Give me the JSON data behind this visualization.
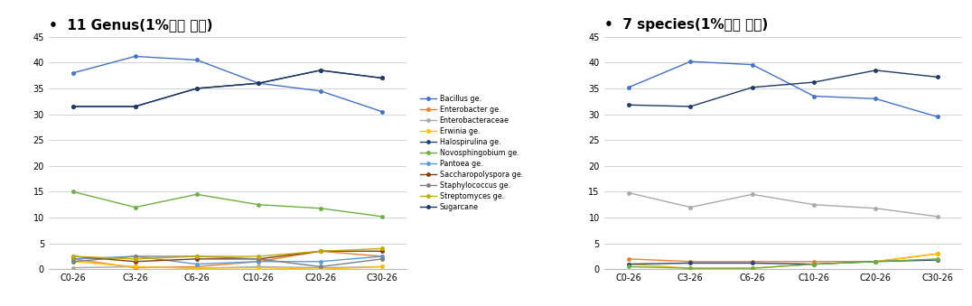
{
  "title_left": "11 Genus(1%이상 존재)",
  "title_right": "7 species(1%이상 존재)",
  "x_labels": [
    "C0-26",
    "C3-26",
    "C6-26",
    "C10-26",
    "C20-26",
    "C30-26"
  ],
  "left_colors": {
    "Bacillus ge.": "#4472C4",
    "Enterobacter ge.": "#ED7D31",
    "Enterobacteraceae": "#A9A9A9",
    "Erwinia ge.": "#FFC000",
    "Halospirulina ge.": "#264478",
    "Novosphingobium ge.": "#70AD47",
    "Pantoea ge.": "#5B9BD5",
    "Saccharopolyspora ge.": "#843C0C",
    "Staphylococcus ge.": "#7F7F7F",
    "Streptomyces ge.": "#BFAE00",
    "Sugarcane": "#1F3864"
  },
  "left_values": {
    "Bacillus ge.": [
      38.0,
      41.2,
      40.5,
      36.0,
      34.5,
      30.5
    ],
    "Enterobacter ge.": [
      2.0,
      0.3,
      0.5,
      1.5,
      3.5,
      2.5
    ],
    "Enterobacteraceae": [
      0.3,
      0.5,
      0.2,
      0.5,
      0.3,
      0.5
    ],
    "Erwinia ge.": [
      1.5,
      0.5,
      0.2,
      0.3,
      0.0,
      0.5
    ],
    "Halospirulina ge.": [
      31.5,
      31.5,
      35.0,
      36.0,
      38.5,
      37.0
    ],
    "Novosphingobium ge.": [
      15.0,
      12.0,
      14.5,
      12.5,
      11.8,
      10.2
    ],
    "Pantoea ge.": [
      2.0,
      2.5,
      1.0,
      1.5,
      1.5,
      2.5
    ],
    "Saccharopolyspora ge.": [
      2.5,
      1.5,
      2.0,
      2.0,
      3.5,
      3.5
    ],
    "Staphylococcus ge.": [
      1.5,
      2.5,
      2.5,
      2.0,
      0.5,
      2.0
    ],
    "Streptomyces ge.": [
      2.5,
      2.0,
      2.5,
      2.5,
      3.5,
      4.0
    ],
    "Sugarcane": [
      31.5,
      31.5,
      35.0,
      36.0,
      38.5,
      37.0
    ]
  },
  "right_colors": {
    "Halospirulina_sp._EF16(2012)": "#4472C4",
    "Halospirulina_sp._EF17(2012)": "#ED7D31",
    "Novosphingobium_sp._HME8524": "#A9A9A9",
    "Saccharopolyspora_rosea": "#FFC000",
    "Staphylococcus_saprophyticus": "#264478",
    "Streptomyces_sp._NS02": "#70AD47",
    "Sugarcane_phytoplasma_(uncharacterized)": "#1F3864"
  },
  "right_values": {
    "Halospirulina_sp._EF16(2012)": [
      35.2,
      40.2,
      39.6,
      33.5,
      33.0,
      29.5
    ],
    "Halospirulina_sp._EF17(2012)": [
      2.0,
      1.5,
      1.5,
      1.5,
      1.5,
      3.0
    ],
    "Novosphingobium_sp._HME8524": [
      14.8,
      12.0,
      14.5,
      12.5,
      11.8,
      10.2
    ],
    "Saccharopolyspora_rosea": [
      1.0,
      0.2,
      0.2,
      1.0,
      1.5,
      3.0
    ],
    "Staphylococcus_saprophyticus": [
      1.0,
      1.2,
      1.2,
      1.0,
      1.5,
      1.8
    ],
    "Streptomyces_sp._NS02": [
      0.5,
      0.2,
      0.2,
      1.0,
      1.5,
      2.0
    ],
    "Sugarcane_phytoplasma_(uncharacterized)": [
      31.8,
      31.5,
      35.2,
      36.2,
      38.5,
      37.2
    ]
  },
  "ylim": [
    0,
    45
  ],
  "yticks": [
    0,
    5,
    10,
    15,
    20,
    25,
    30,
    35,
    40,
    45
  ],
  "bg_color": "#FFFFFF",
  "grid_color": "#D3D3D3",
  "legend_fontsize": 5.8,
  "title_fontsize": 11,
  "axis_fontsize": 7
}
